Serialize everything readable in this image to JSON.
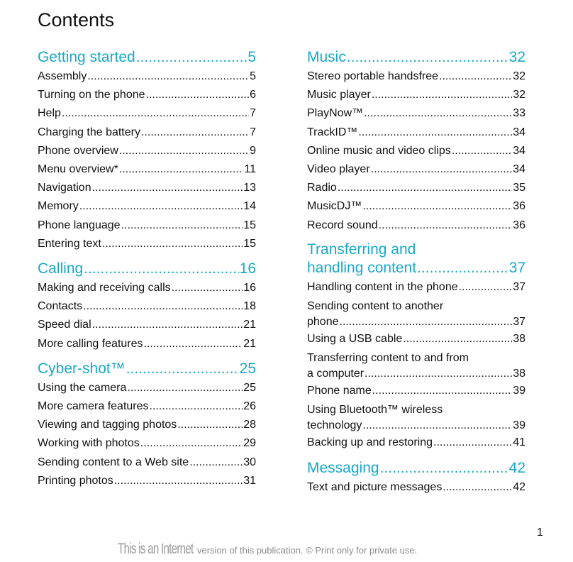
{
  "title": "Contents",
  "page_number": "1",
  "footer": {
    "stamp": "This is an Internet",
    "text": "version of this publication. © Print only for private use."
  },
  "colors": {
    "heading": "#19a8c6",
    "text": "#111111"
  },
  "left_column": [
    {
      "heading": "Getting started",
      "page": "5",
      "entries": [
        {
          "label": "Assembly",
          "page": "5"
        },
        {
          "label": "Turning on the phone",
          "page": "6"
        },
        {
          "label": "Help",
          "page": "7"
        },
        {
          "label": "Charging the battery",
          "page": "7"
        },
        {
          "label": "Phone overview",
          "page": "9"
        },
        {
          "label": "Menu overview*",
          "page": "11"
        },
        {
          "label": "Navigation",
          "page": "13"
        },
        {
          "label": "Memory",
          "page": "14"
        },
        {
          "label": "Phone language",
          "page": "15"
        },
        {
          "label": "Entering text",
          "page": "15"
        }
      ]
    },
    {
      "heading": "Calling",
      "page": "16",
      "entries": [
        {
          "label": "Making and receiving calls",
          "page": "16"
        },
        {
          "label": "Contacts",
          "page": "18"
        },
        {
          "label": "Speed dial",
          "page": "21"
        },
        {
          "label": "More calling features",
          "page": "21"
        }
      ]
    },
    {
      "heading": "Cyber-shot™ ",
      "page": "25",
      "entries": [
        {
          "label": "Using the camera",
          "page": "25"
        },
        {
          "label": "More camera features",
          "page": "26"
        },
        {
          "label": "Viewing and tagging photos",
          "page": "28"
        },
        {
          "label": "Working with photos",
          "page": "29"
        },
        {
          "label": "Sending content to a Web site",
          "page": "30"
        },
        {
          "label": "Printing photos",
          "page": "31"
        }
      ]
    }
  ],
  "right_column": [
    {
      "heading": "Music ",
      "page": "32",
      "entries": [
        {
          "label": "Stereo portable handsfree",
          "page": "32"
        },
        {
          "label": "Music player",
          "page": "32"
        },
        {
          "label": "PlayNow™",
          "page": "33"
        },
        {
          "label": "TrackID™ ",
          "page": "34"
        },
        {
          "label": "Online music and video clips",
          "page": "34"
        },
        {
          "label": "Video player",
          "page": "34"
        },
        {
          "label": "Radio ",
          "page": "35"
        },
        {
          "label": "MusicDJ™",
          "page": "36"
        },
        {
          "label": "Record sound ",
          "page": "36"
        }
      ]
    },
    {
      "heading_line1": "Transferring and",
      "heading": "handling content",
      "page": "37",
      "entries": [
        {
          "label": "Handling content in the phone",
          "page": "37"
        },
        {
          "label_line1": "Sending content to another",
          "label": "phone",
          "page": "37"
        },
        {
          "label": "Using a USB cable",
          "page": "38"
        },
        {
          "label_line1": "Transferring content to and from",
          "label": "a computer",
          "page": "38"
        },
        {
          "label": "Phone name",
          "page": "39"
        },
        {
          "label_line1": "Using Bluetooth™ wireless",
          "label": "technology",
          "page": "39"
        },
        {
          "label": "Backing up and restoring",
          "page": "41"
        }
      ]
    },
    {
      "heading": "Messaging",
      "page": "42",
      "entries": [
        {
          "label": "Text and picture messages",
          "page": "42"
        }
      ]
    }
  ]
}
